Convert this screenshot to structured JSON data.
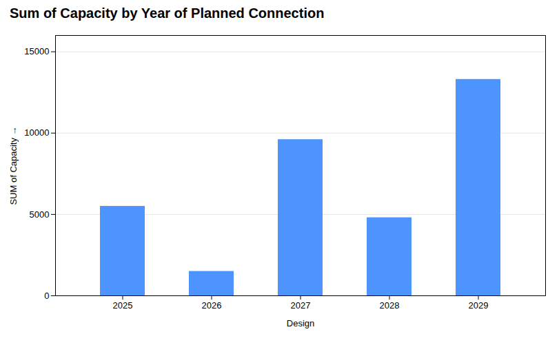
{
  "chart_data": {
    "type": "bar",
    "title": "Sum of Capacity by Year of Planned Connection",
    "xlabel": "Design",
    "ylabel": "SUM of Capacity",
    "categories": [
      "2025",
      "2026",
      "2027",
      "2028",
      "2029"
    ],
    "values": [
      5500,
      1500,
      9600,
      4800,
      13300
    ],
    "color": "#4d94ff",
    "ylim": [
      0,
      16000
    ],
    "yticks": [
      0,
      5000,
      10000,
      15000
    ],
    "grid": true
  }
}
